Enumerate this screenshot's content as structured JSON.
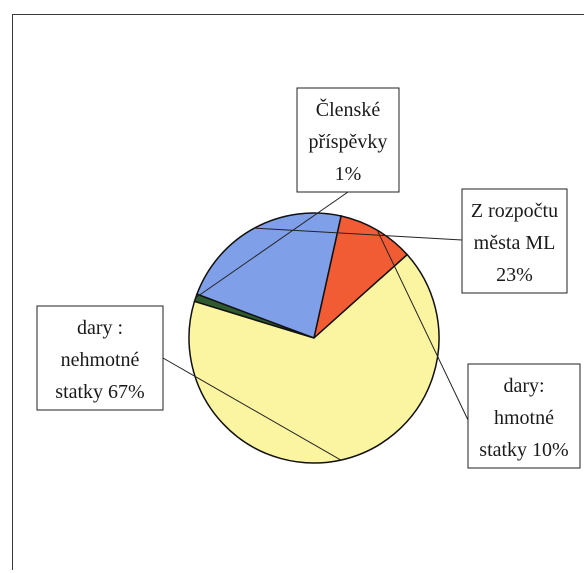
{
  "chart_data": {
    "type": "pie",
    "title": "",
    "slices": [
      {
        "label_lines": [
          "Členské",
          "příspěvky",
          "1%"
        ],
        "value": 1,
        "color": "#2e5a2e"
      },
      {
        "label_lines": [
          "Z rozpočtu",
          "města ML",
          "23%"
        ],
        "value": 23,
        "color": "#7f9fe8"
      },
      {
        "label_lines": [
          "dary:",
          "hmotné",
          "statky 10%"
        ],
        "value": 10,
        "color": "#f25c35"
      },
      {
        "label_lines": [
          "dary :",
          "nehmotné",
          "statky 67%"
        ],
        "value": 67,
        "color": "#fbf5a2"
      }
    ],
    "legend": "none"
  }
}
